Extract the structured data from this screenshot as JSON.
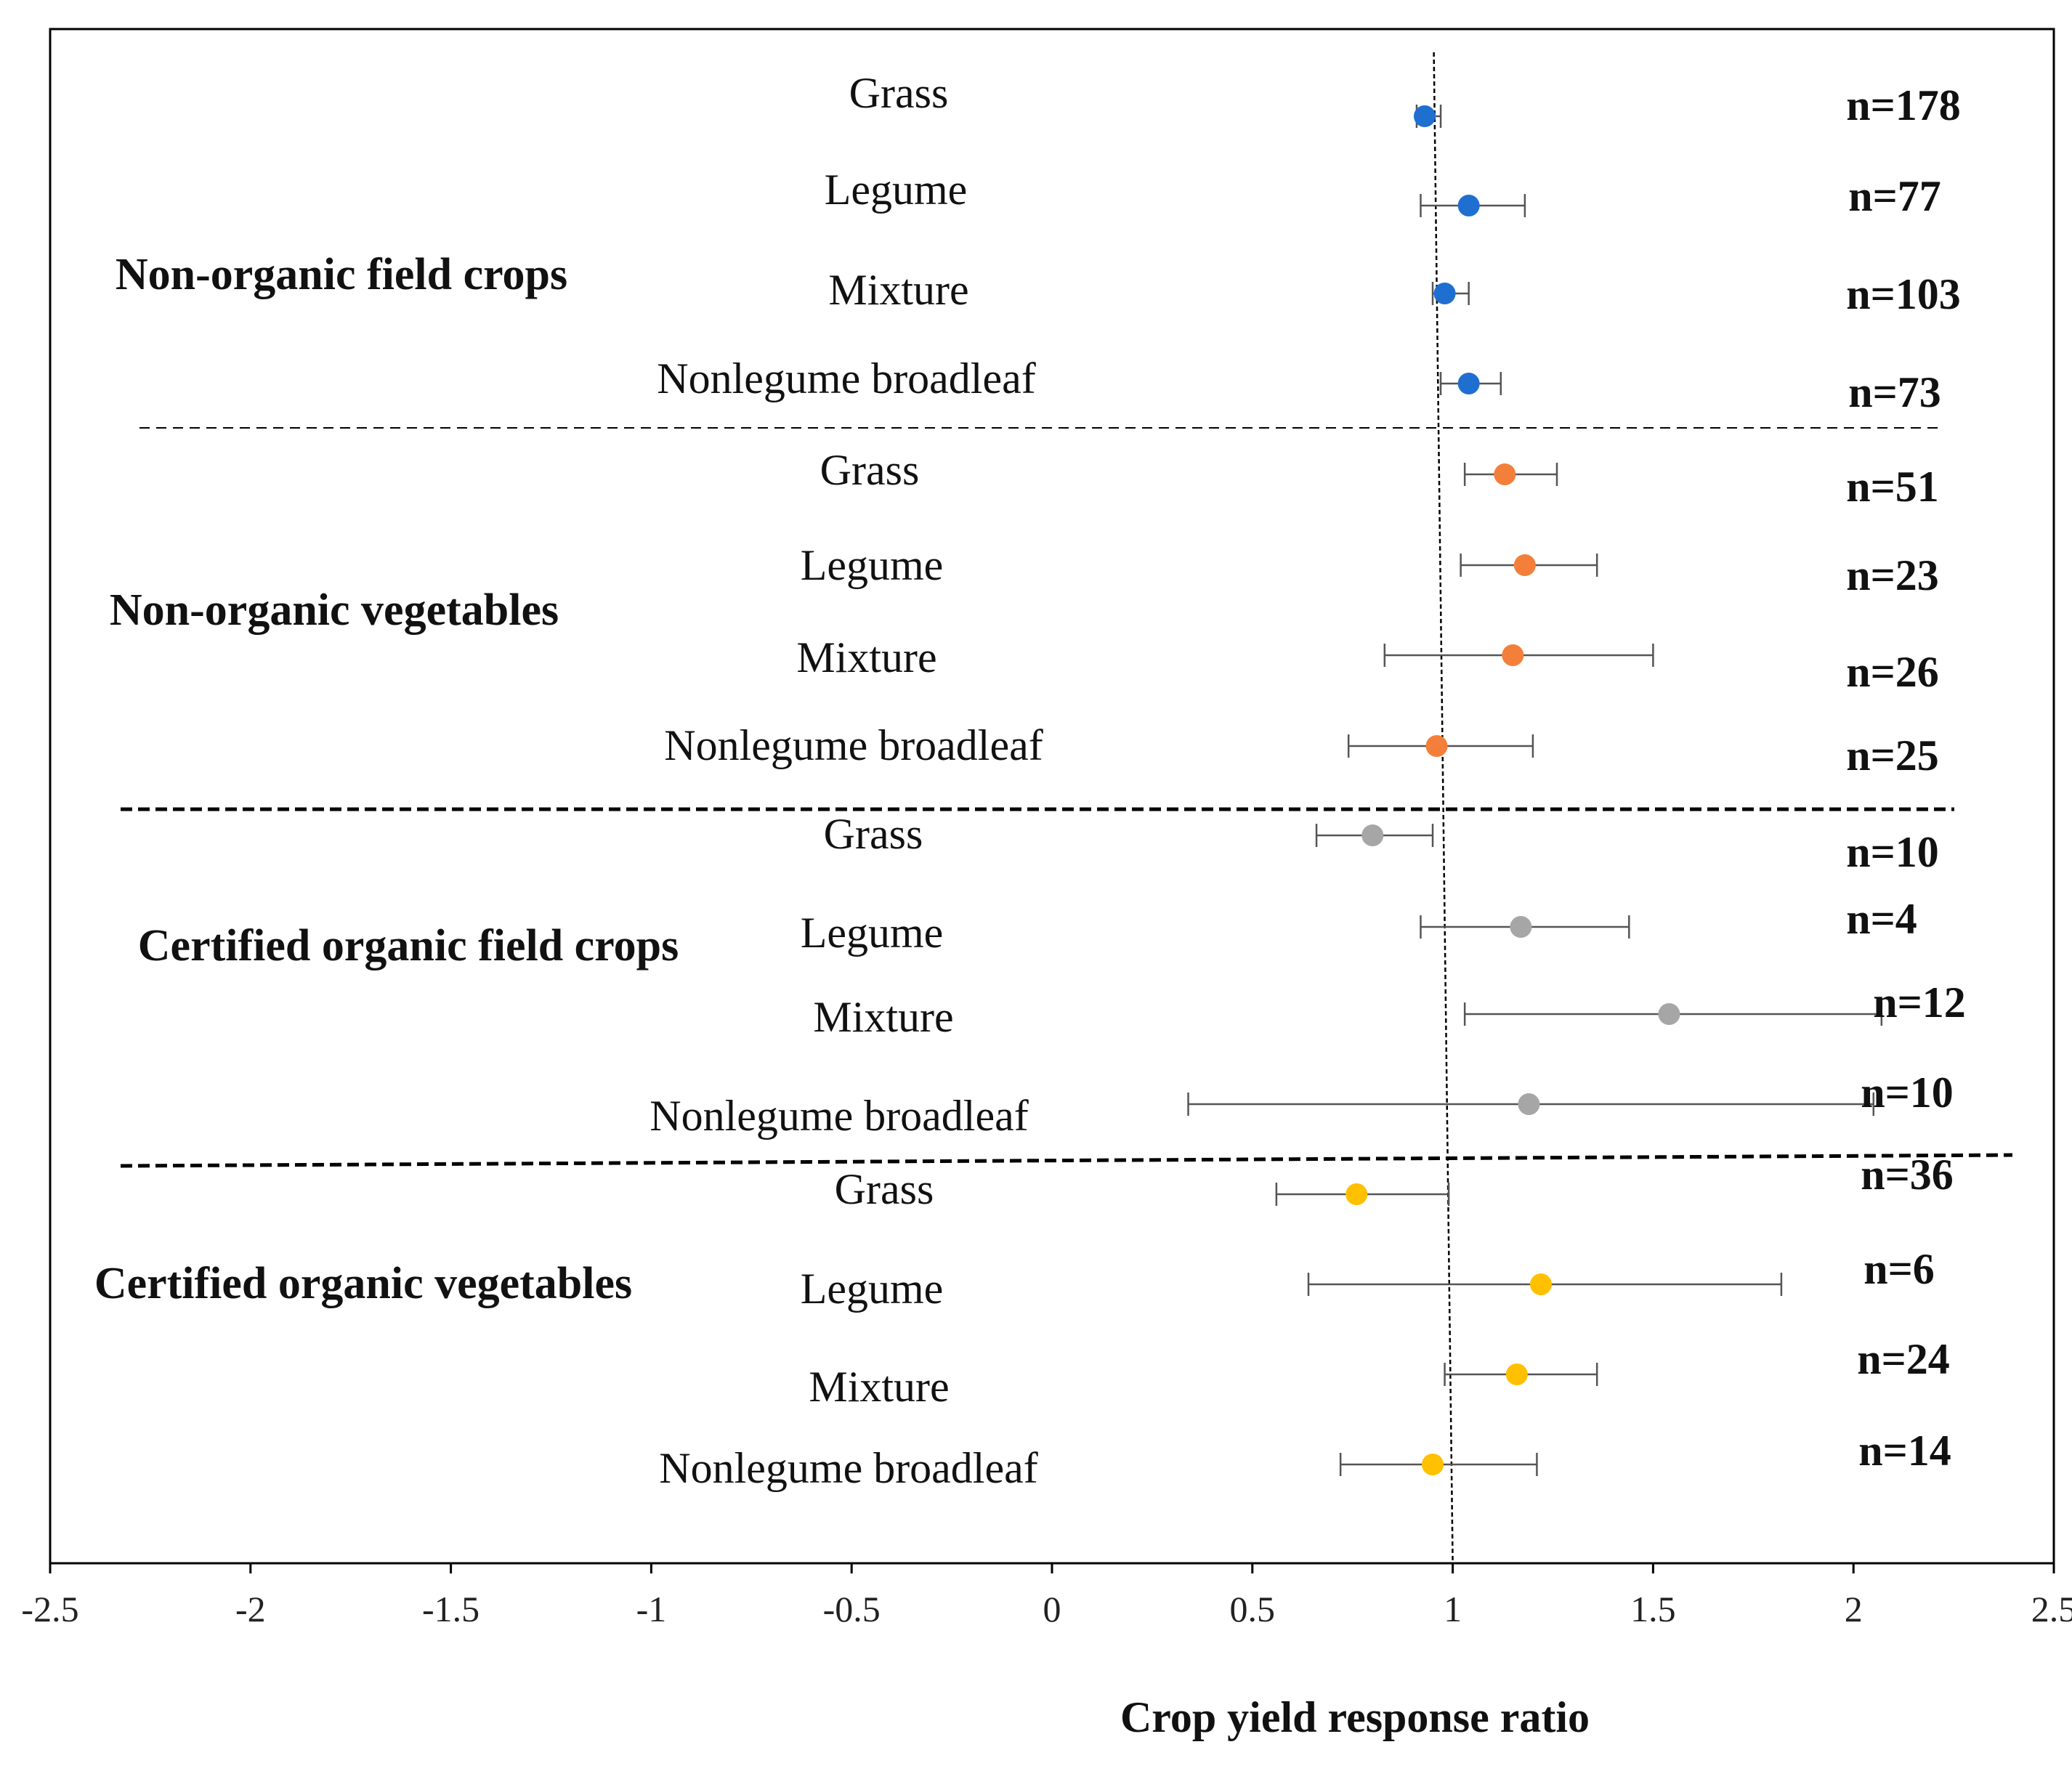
{
  "chart_data": {
    "type": "scatter",
    "subtype": "forest-plot-with-error-bars",
    "xlabel": "Crop yield response ratio",
    "ylabel": "",
    "xlim": [
      -2.5,
      2.5
    ],
    "x_ticks": [
      -2.5,
      -2,
      -1.5,
      -1,
      -0.5,
      0,
      0.5,
      1,
      1.5,
      2,
      2.5
    ],
    "x_tick_labels": [
      "-2.5",
      "-2",
      "-1.5",
      "-1",
      "-0.5",
      "0",
      "0.5",
      "1",
      "1.5",
      "2",
      "2.5"
    ],
    "reference_line": 1,
    "grid": false,
    "groups": [
      {
        "name": "Non-organic field crops",
        "color": "#1f6fd1",
        "rows": [
          {
            "category": "Grass",
            "value": 0.93,
            "low": 0.91,
            "high": 0.97,
            "n": "n=178"
          },
          {
            "category": "Legume",
            "value": 1.04,
            "low": 0.92,
            "high": 1.18,
            "n": "n=77"
          },
          {
            "category": "Mixture",
            "value": 0.98,
            "low": 0.95,
            "high": 1.04,
            "n": "n=103"
          },
          {
            "category": "Nonlegume broadleaf",
            "value": 1.04,
            "low": 0.97,
            "high": 1.12,
            "n": "n=73"
          }
        ]
      },
      {
        "name": "Non-organic vegetables",
        "color": "#f47f3a",
        "rows": [
          {
            "category": "Grass",
            "value": 1.13,
            "low": 1.03,
            "high": 1.26,
            "n": "n=51"
          },
          {
            "category": "Legume",
            "value": 1.18,
            "low": 1.02,
            "high": 1.36,
            "n": "n=23"
          },
          {
            "category": "Mixture",
            "value": 1.15,
            "low": 0.83,
            "high": 1.5,
            "n": "n=26"
          },
          {
            "category": "Nonlegume broadleaf",
            "value": 0.96,
            "low": 0.74,
            "high": 1.2,
            "n": "n=25"
          }
        ]
      },
      {
        "name": "Certified organic field crops",
        "color": "#a6a6a6",
        "rows": [
          {
            "category": "Grass",
            "value": 0.8,
            "low": 0.66,
            "high": 0.95,
            "n": "n=10"
          },
          {
            "category": "Legume",
            "value": 1.17,
            "low": 0.92,
            "high": 1.44,
            "n": "n=4"
          },
          {
            "category": "Mixture",
            "value": 1.54,
            "low": 1.03,
            "high": 2.07,
            "n": "n=12"
          },
          {
            "category": "Nonlegume broadleaf",
            "value": 1.19,
            "low": 0.34,
            "high": 2.05,
            "n": "n=10"
          }
        ]
      },
      {
        "name": "Certified organic vegetables",
        "color": "#ffc000",
        "rows": [
          {
            "category": "Grass",
            "value": 0.76,
            "low": 0.56,
            "high": 0.99,
            "n": "n=36"
          },
          {
            "category": "Legume",
            "value": 1.22,
            "low": 0.64,
            "high": 1.82,
            "n": "n=6"
          },
          {
            "category": "Mixture",
            "value": 1.16,
            "low": 0.98,
            "high": 1.36,
            "n": "n=24"
          },
          {
            "category": "Nonlegume broadleaf",
            "value": 0.95,
            "low": 0.72,
            "high": 1.21,
            "n": "n=14"
          }
        ]
      }
    ]
  }
}
